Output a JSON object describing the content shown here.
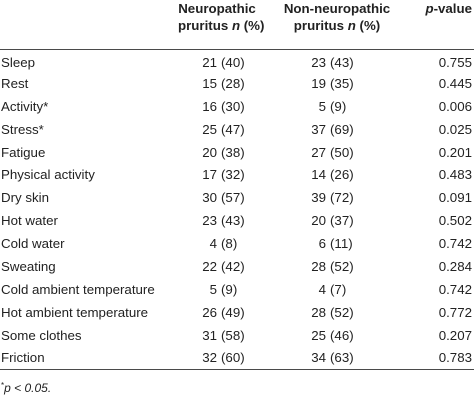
{
  "header": {
    "col1_line1": "Neuropathic",
    "col1_line2_prefix": "pruritus ",
    "col1_line2_n": "n",
    "col1_line2_suffix": " (%)",
    "col2_line1": "Non-neuropathic",
    "col2_line2_prefix": "pruritus ",
    "col2_line2_n": "n",
    "col2_line2_suffix": " (%)",
    "col3_p": "p",
    "col3_suffix": "-value"
  },
  "rows": [
    {
      "label": "Sleep",
      "neuro_n": "21",
      "neuro_pct": "(40)",
      "non_n": "23",
      "non_pct": "(43)",
      "p": "0.755"
    },
    {
      "label": "Rest",
      "neuro_n": "15",
      "neuro_pct": "(28)",
      "non_n": "19",
      "non_pct": "(35)",
      "p": "0.445"
    },
    {
      "label": "Activity*",
      "neuro_n": "16",
      "neuro_pct": "(30)",
      "non_n": "5",
      "non_pct": "(9)",
      "p": "0.006"
    },
    {
      "label": "Stress*",
      "neuro_n": "25",
      "neuro_pct": "(47)",
      "non_n": "37",
      "non_pct": "(69)",
      "p": "0.025"
    },
    {
      "label": "Fatigue",
      "neuro_n": "20",
      "neuro_pct": "(38)",
      "non_n": "27",
      "non_pct": "(50)",
      "p": "0.201"
    },
    {
      "label": "Physical activity",
      "neuro_n": "17",
      "neuro_pct": "(32)",
      "non_n": "14",
      "non_pct": "(26)",
      "p": "0.483"
    },
    {
      "label": "Dry skin",
      "neuro_n": "30",
      "neuro_pct": "(57)",
      "non_n": "39",
      "non_pct": "(72)",
      "p": "0.091"
    },
    {
      "label": "Hot water",
      "neuro_n": "23",
      "neuro_pct": "(43)",
      "non_n": "20",
      "non_pct": "(37)",
      "p": "0.502"
    },
    {
      "label": "Cold water",
      "neuro_n": "4",
      "neuro_pct": "(8)",
      "non_n": "6",
      "non_pct": "(11)",
      "p": "0.742"
    },
    {
      "label": "Sweating",
      "neuro_n": "22",
      "neuro_pct": "(42)",
      "non_n": "28",
      "non_pct": "(52)",
      "p": "0.284"
    },
    {
      "label": "Cold ambient temperature",
      "neuro_n": "5",
      "neuro_pct": "(9)",
      "non_n": "4",
      "non_pct": "(7)",
      "p": "0.742"
    },
    {
      "label": "Hot ambient temperature",
      "neuro_n": "26",
      "neuro_pct": "(49)",
      "non_n": "28",
      "non_pct": "(52)",
      "p": "0.772"
    },
    {
      "label": "Some clothes",
      "neuro_n": "31",
      "neuro_pct": "(58)",
      "non_n": "25",
      "non_pct": "(46)",
      "p": "0.207"
    },
    {
      "label": "Friction",
      "neuro_n": "32",
      "neuro_pct": "(60)",
      "non_n": "34",
      "non_pct": "(63)",
      "p": "0.783"
    }
  ],
  "footnote": {
    "marker": "*",
    "text": "p < 0.05."
  }
}
